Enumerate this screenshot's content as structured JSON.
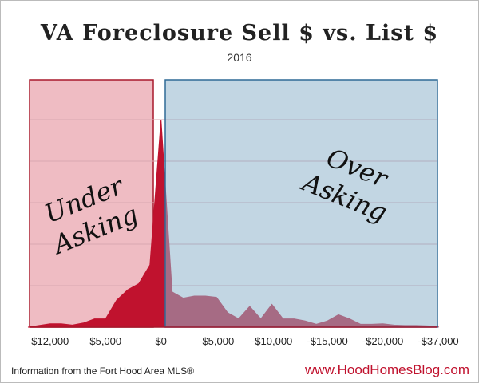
{
  "chart_data": {
    "type": "area",
    "title": "VA Foreclosure Sell $ vs. List $",
    "subtitle": "2016",
    "categories": [
      null,
      null,
      "$12,000",
      null,
      null,
      null,
      null,
      "$5,000",
      null,
      null,
      null,
      null,
      "$0",
      null,
      null,
      null,
      null,
      "-$5,000",
      null,
      null,
      null,
      null,
      "-$10,000",
      null,
      null,
      null,
      null,
      "-$15,000",
      null,
      null,
      null,
      null,
      "-$20,000",
      null,
      null,
      null,
      null,
      "-$37,000"
    ],
    "values": [
      0,
      0.04,
      0.08,
      0.08,
      0.05,
      0.1,
      0.2,
      0.2,
      0.65,
      0.9,
      1.05,
      1.5,
      5.0,
      0.85,
      0.7,
      0.75,
      0.75,
      0.72,
      0.35,
      0.2,
      0.5,
      0.2,
      0.55,
      0.2,
      0.2,
      0.15,
      0.07,
      0.15,
      0.3,
      0.2,
      0.07,
      0.07,
      0.08,
      0.05,
      0.04,
      0.04,
      0.03,
      0.02
    ],
    "color": "#c0122e",
    "ylim": [
      0,
      6
    ],
    "yticks": [
      1,
      2,
      3,
      4,
      5
    ],
    "grid": true,
    "annotations": [
      [
        "Under",
        "Asking"
      ],
      [
        "Over",
        "Asking"
      ]
    ],
    "source": "Information from the Fort Hood Area MLS®",
    "website": "www.HoodHomesBlog.com"
  }
}
